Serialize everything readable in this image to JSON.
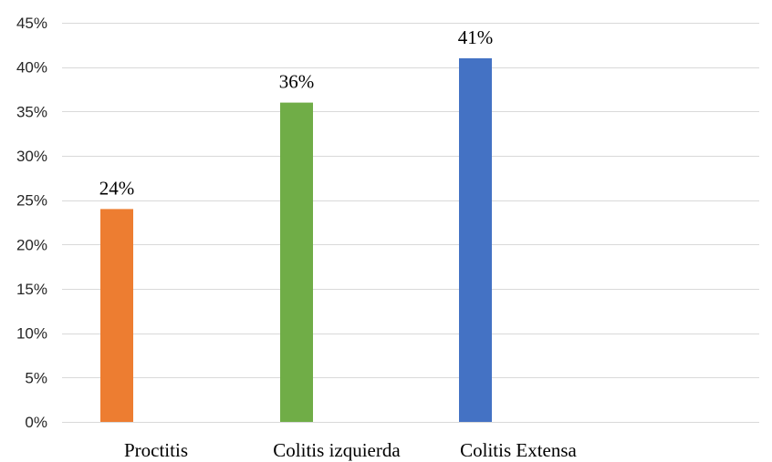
{
  "chart_data": {
    "type": "bar",
    "title": "",
    "xlabel": "",
    "ylabel": "",
    "categories": [
      "Proctitis",
      "Colitis izquierda",
      "Colitis Extensa"
    ],
    "values": [
      24,
      36,
      41
    ],
    "data_labels": [
      "24%",
      "36%",
      "41%"
    ],
    "bar_colors": [
      "#ED7D31",
      "#70AD47",
      "#4472C4"
    ],
    "ylim": [
      0,
      45
    ],
    "y_ticks": [
      0,
      5,
      10,
      15,
      20,
      25,
      30,
      35,
      40,
      45
    ],
    "y_tick_labels": [
      "0%",
      "5%",
      "10%",
      "15%",
      "20%",
      "25%",
      "30%",
      "35%",
      "40%",
      "45%"
    ],
    "grid": true,
    "legend": "none"
  }
}
